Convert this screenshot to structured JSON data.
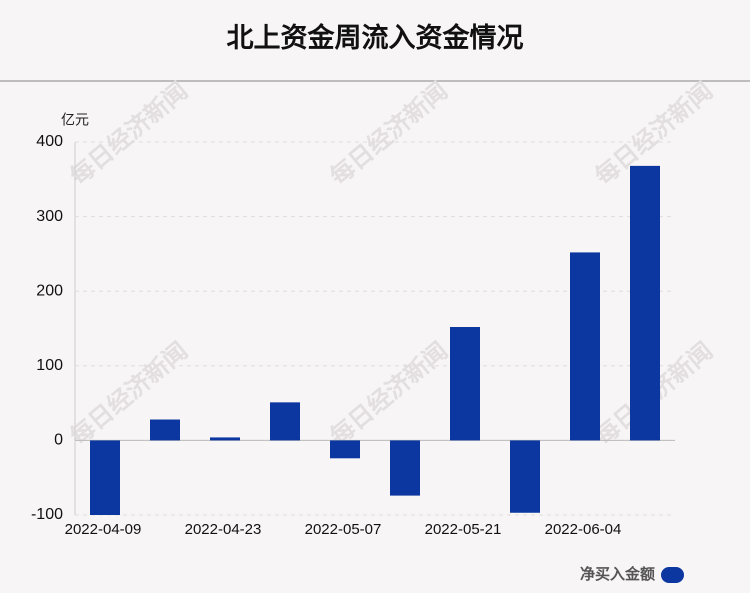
{
  "chart_data": {
    "type": "bar",
    "title": "北上资金周流入资金情况",
    "y_label": "亿元",
    "watermark": "每日经济新闻",
    "categories": [
      "2022-04-09",
      null,
      "2022-04-23",
      null,
      "2022-05-07",
      null,
      "2022-05-21",
      null,
      "2022-06-04",
      null
    ],
    "series": [
      {
        "name": "净买入金额",
        "color": "#0d37a0",
        "values": [
          -100,
          28,
          4,
          51,
          -24,
          -74,
          152,
          -97,
          252,
          368
        ]
      }
    ],
    "ylim": [
      -100,
      400
    ],
    "yticks": [
      -100,
      0,
      100,
      200,
      300,
      400
    ],
    "grid": true,
    "legend": "bottom-right"
  }
}
